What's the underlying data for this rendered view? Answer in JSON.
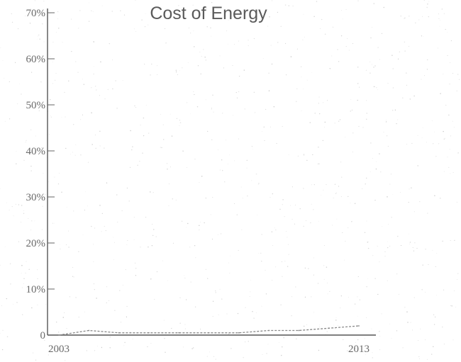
{
  "chart_data": {
    "type": "line",
    "title": "Cost of Energy",
    "xlabel": "",
    "ylabel": "",
    "x_ticks": [
      "2003",
      "2013"
    ],
    "y_ticks": [
      "0",
      "10%",
      "20%",
      "30%",
      "40%",
      "50%",
      "60%",
      "70%"
    ],
    "xlim": [
      2003,
      2013
    ],
    "ylim": [
      0,
      70
    ],
    "grid": false,
    "legend": "none",
    "series": [
      {
        "x": [
          2003,
          2004,
          2005,
          2006,
          2007,
          2008,
          2009,
          2010,
          2011,
          2012,
          2013
        ],
        "values": [
          0,
          1,
          0.5,
          0.5,
          0.5,
          0.5,
          0.5,
          1,
          1,
          1.5,
          2
        ]
      }
    ]
  },
  "colors": {
    "line": "#8a8a8a",
    "axis": "#555555",
    "text": "#5a5a5a"
  }
}
